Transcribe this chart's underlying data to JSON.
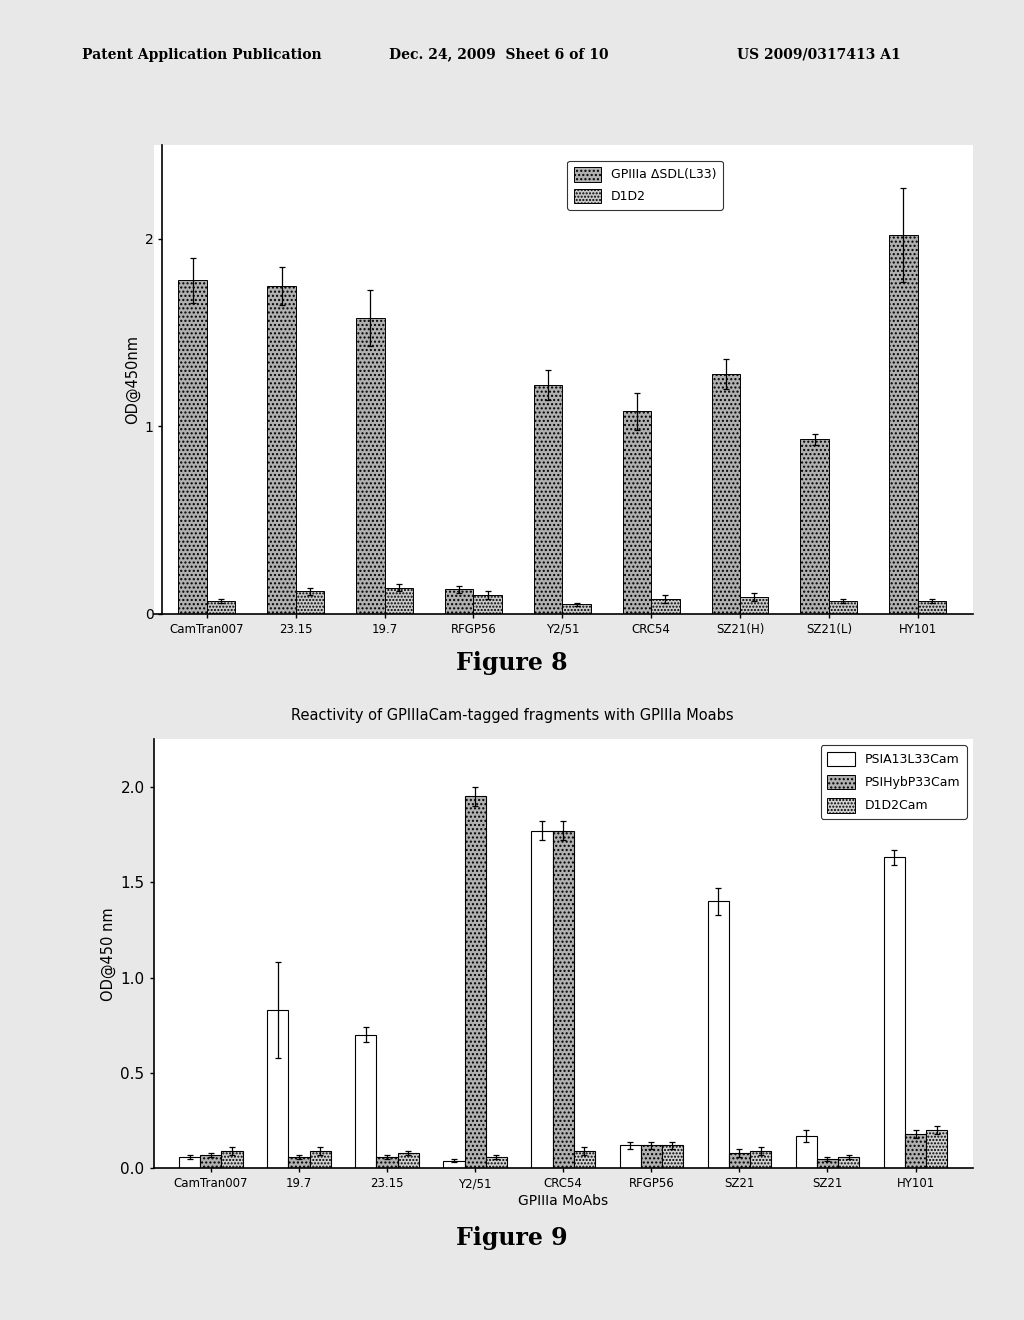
{
  "fig8": {
    "categories": [
      "CamTran007",
      "23.15",
      "19.7",
      "RFGP56",
      "Y2/51",
      "CRC54",
      "SZ21(H)",
      "SZ21(L)",
      "HY101"
    ],
    "series1_label": "GPIIIa ΔSDL(L33)",
    "series2_label": "D1D2",
    "series1_values": [
      1.78,
      1.75,
      1.58,
      0.13,
      1.22,
      1.08,
      1.28,
      0.93,
      2.02
    ],
    "series1_errors": [
      0.12,
      0.1,
      0.15,
      0.02,
      0.08,
      0.1,
      0.08,
      0.03,
      0.25
    ],
    "series2_values": [
      0.07,
      0.12,
      0.14,
      0.1,
      0.05,
      0.08,
      0.09,
      0.07,
      0.07
    ],
    "series2_errors": [
      0.01,
      0.02,
      0.02,
      0.02,
      0.01,
      0.02,
      0.02,
      0.01,
      0.01
    ],
    "ylabel": "OD@450nm",
    "ylim": [
      0,
      2.5
    ],
    "yticks": [
      0,
      1,
      2
    ],
    "figure_label": "Figure 8",
    "bar_width": 0.32
  },
  "fig9": {
    "title": "Reactivity of GPIIIaCam-tagged fragments with GPIIIa Moabs",
    "categories": [
      "CamTran007",
      "19.7",
      "23.15",
      "Y2/51",
      "CRC54",
      "RFGP56",
      "SZ21",
      "SZ21",
      "HY101"
    ],
    "series1_label": "PSIA13L33Cam",
    "series2_label": "PSIHybP33Cam",
    "series3_label": "D1D2Cam",
    "series1_values": [
      0.06,
      0.83,
      0.7,
      0.04,
      1.77,
      0.12,
      1.4,
      0.17,
      1.63
    ],
    "series1_errors": [
      0.01,
      0.25,
      0.04,
      0.01,
      0.05,
      0.02,
      0.07,
      0.03,
      0.04
    ],
    "series2_values": [
      0.07,
      0.06,
      0.06,
      1.95,
      1.77,
      0.12,
      0.08,
      0.05,
      0.18
    ],
    "series2_errors": [
      0.01,
      0.01,
      0.01,
      0.05,
      0.05,
      0.02,
      0.02,
      0.01,
      0.02
    ],
    "series3_values": [
      0.09,
      0.09,
      0.08,
      0.06,
      0.09,
      0.12,
      0.09,
      0.06,
      0.2
    ],
    "series3_errors": [
      0.02,
      0.02,
      0.01,
      0.01,
      0.02,
      0.02,
      0.02,
      0.01,
      0.02
    ],
    "ylabel": "OD@450 nm",
    "xlabel": "GPIIIa MoAbs",
    "ylim": [
      0,
      2.25
    ],
    "yticks": [
      0.0,
      0.5,
      1.0,
      1.5,
      2.0
    ],
    "figure_label": "Figure 9",
    "bar_width": 0.24
  },
  "header_left": "Patent Application Publication",
  "header_mid": "Dec. 24, 2009  Sheet 6 of 10",
  "header_right": "US 2009/0317413 A1",
  "bg_color": "#e8e8e8",
  "plot_bg": "#ffffff"
}
